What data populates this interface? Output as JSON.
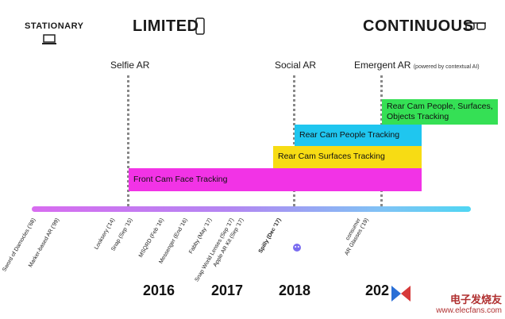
{
  "headers": {
    "stationary": "STATIONARY",
    "limited": "LIMITED",
    "continuous": "CONTINUOUS"
  },
  "stages": {
    "selfie": "Selfie AR",
    "social": "Social AR",
    "emergent": "Emergent AR",
    "emergent_note": "(powered by contextual AI)"
  },
  "bars": {
    "front_cam": "Front Cam Face Tracking",
    "rear_surfaces": "Rear Cam Surfaces Tracking",
    "rear_people": "Rear Cam People Tracking",
    "rear_all": "Rear Cam People, Surfaces, Objects Tracking"
  },
  "colors": {
    "front_cam": "#f233e6",
    "rear_surfaces": "#f7dc14",
    "rear_people": "#1fc6ef",
    "rear_all": "#35e055"
  },
  "events": [
    "Sword of Damocles ('68)",
    "Marker-based AR ('99)",
    "Looksery ('14)",
    "Snap (Sep '15)",
    "MSQRD (Feb '16)",
    "Messenger (End '16)",
    "Fabby (May '17)",
    "Snap World Lenses (Sep '17)",
    "Apple AR Kit (Sep '17)",
    "Spilly (Dec '17)",
    "consumer",
    "AR Glasses ('19)"
  ],
  "years": [
    "2016",
    "2017",
    "2018",
    "202"
  ],
  "watermark": {
    "line1": "电子发烧友",
    "line2": "www.elecfans.com"
  }
}
